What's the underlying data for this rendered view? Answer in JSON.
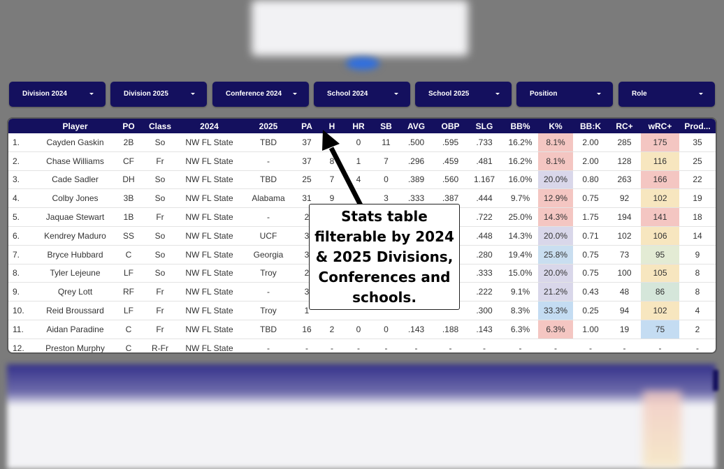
{
  "filters": [
    {
      "label": "Division 2024"
    },
    {
      "label": "Division 2025"
    },
    {
      "label": "Conference 2024"
    },
    {
      "label": "School 2024"
    },
    {
      "label": "School 2025"
    },
    {
      "label": "Position"
    },
    {
      "label": "Role"
    }
  ],
  "table": {
    "headers": [
      "",
      "Player",
      "PO",
      "Class",
      "2024",
      "2025",
      "PA",
      "H",
      "HR",
      "SB",
      "AVG",
      "OBP",
      "SLG",
      "BB%",
      "K%",
      "BB:K",
      "RC+",
      "wRC+",
      "Prod..."
    ],
    "rows": [
      [
        "1.",
        "Cayden Gaskin",
        "2B",
        "So",
        "NW FL State",
        "TBD",
        "37",
        "",
        "0",
        "11",
        ".500",
        ".595",
        ".733",
        "16.2%",
        "8.1%",
        "2.00",
        "285",
        "175",
        "35"
      ],
      [
        "2.",
        "Chase Williams",
        "CF",
        "Fr",
        "NW FL State",
        "-",
        "37",
        "8",
        "1",
        "7",
        ".296",
        ".459",
        ".481",
        "16.2%",
        "8.1%",
        "2.00",
        "128",
        "116",
        "25"
      ],
      [
        "3.",
        "Cade Sadler",
        "DH",
        "So",
        "NW FL State",
        "TBD",
        "25",
        "7",
        "4",
        "0",
        ".389",
        ".560",
        "1.167",
        "16.0%",
        "20.0%",
        "0.80",
        "263",
        "166",
        "22"
      ],
      [
        "4.",
        "Colby Jones",
        "3B",
        "So",
        "NW FL State",
        "Alabama",
        "31",
        "9",
        "",
        "3",
        ".333",
        ".387",
        ".444",
        "9.7%",
        "12.9%",
        "0.75",
        "92",
        "102",
        "19"
      ],
      [
        "5.",
        "Jaquae Stewart",
        "1B",
        "Fr",
        "NW FL State",
        "-",
        "2",
        "",
        "",
        "",
        "",
        "",
        ".722",
        "25.0%",
        "14.3%",
        "1.75",
        "194",
        "141",
        "18"
      ],
      [
        "6.",
        "Kendrey Maduro",
        "SS",
        "So",
        "NW FL State",
        "UCF",
        "3",
        "",
        "",
        "",
        "",
        "",
        ".448",
        "14.3%",
        "20.0%",
        "0.71",
        "102",
        "106",
        "14"
      ],
      [
        "7.",
        "Bryce Hubbard",
        "C",
        "So",
        "NW FL State",
        "Georgia",
        "3",
        "",
        "",
        "",
        "",
        "",
        ".280",
        "19.4%",
        "25.8%",
        "0.75",
        "73",
        "95",
        "9"
      ],
      [
        "8.",
        "Tyler Lejeune",
        "LF",
        "So",
        "NW FL State",
        "Troy",
        "2",
        "",
        "",
        "",
        "",
        "",
        ".333",
        "15.0%",
        "20.0%",
        "0.75",
        "100",
        "105",
        "8"
      ],
      [
        "9.",
        "Qrey Lott",
        "RF",
        "Fr",
        "NW FL State",
        "-",
        "3",
        "",
        "",
        "",
        "",
        "",
        ".222",
        "9.1%",
        "21.2%",
        "0.43",
        "48",
        "86",
        "8"
      ],
      [
        "10.",
        "Reid Broussard",
        "LF",
        "Fr",
        "NW FL State",
        "Troy",
        "1",
        "",
        "",
        "",
        "",
        "",
        ".300",
        "8.3%",
        "33.3%",
        "0.25",
        "94",
        "102",
        "4"
      ],
      [
        "11.",
        "Aidan Paradine",
        "C",
        "Fr",
        "NW FL State",
        "TBD",
        "16",
        "2",
        "0",
        "0",
        ".143",
        ".188",
        ".143",
        "6.3%",
        "6.3%",
        "1.00",
        "19",
        "75",
        "2"
      ],
      [
        "12.",
        "Preston Murphy",
        "C",
        "R-Fr",
        "NW FL State",
        "-",
        "-",
        "-",
        "-",
        "-",
        "-",
        "-",
        "-",
        "-",
        "-",
        "-",
        "-",
        "-",
        "-"
      ]
    ],
    "k_colors": [
      "#f4c6c2",
      "#f4c6c2",
      "#d9d7ea",
      "#f4c6c2",
      "#f4c6c2",
      "#d9d7ea",
      "#c9def0",
      "#d9d7ea",
      "#d9d7ea",
      "#c4dcf2",
      "#f4c6c2",
      ""
    ],
    "wrc_colors": [
      "#f4c6c2",
      "#f7e6bf",
      "#f4c6c2",
      "#f7e6bf",
      "#f4c6c2",
      "#f7e6bf",
      "#e3ebd4",
      "#f7e6bf",
      "#d5e6da",
      "#f7e6bf",
      "#c4dcf2",
      ""
    ]
  },
  "callout": {
    "line1": "Stats table",
    "line2": "filterable by 2024",
    "line3": "& 2025 Divisions,",
    "line4": "Conferences and",
    "line5": "schools."
  }
}
